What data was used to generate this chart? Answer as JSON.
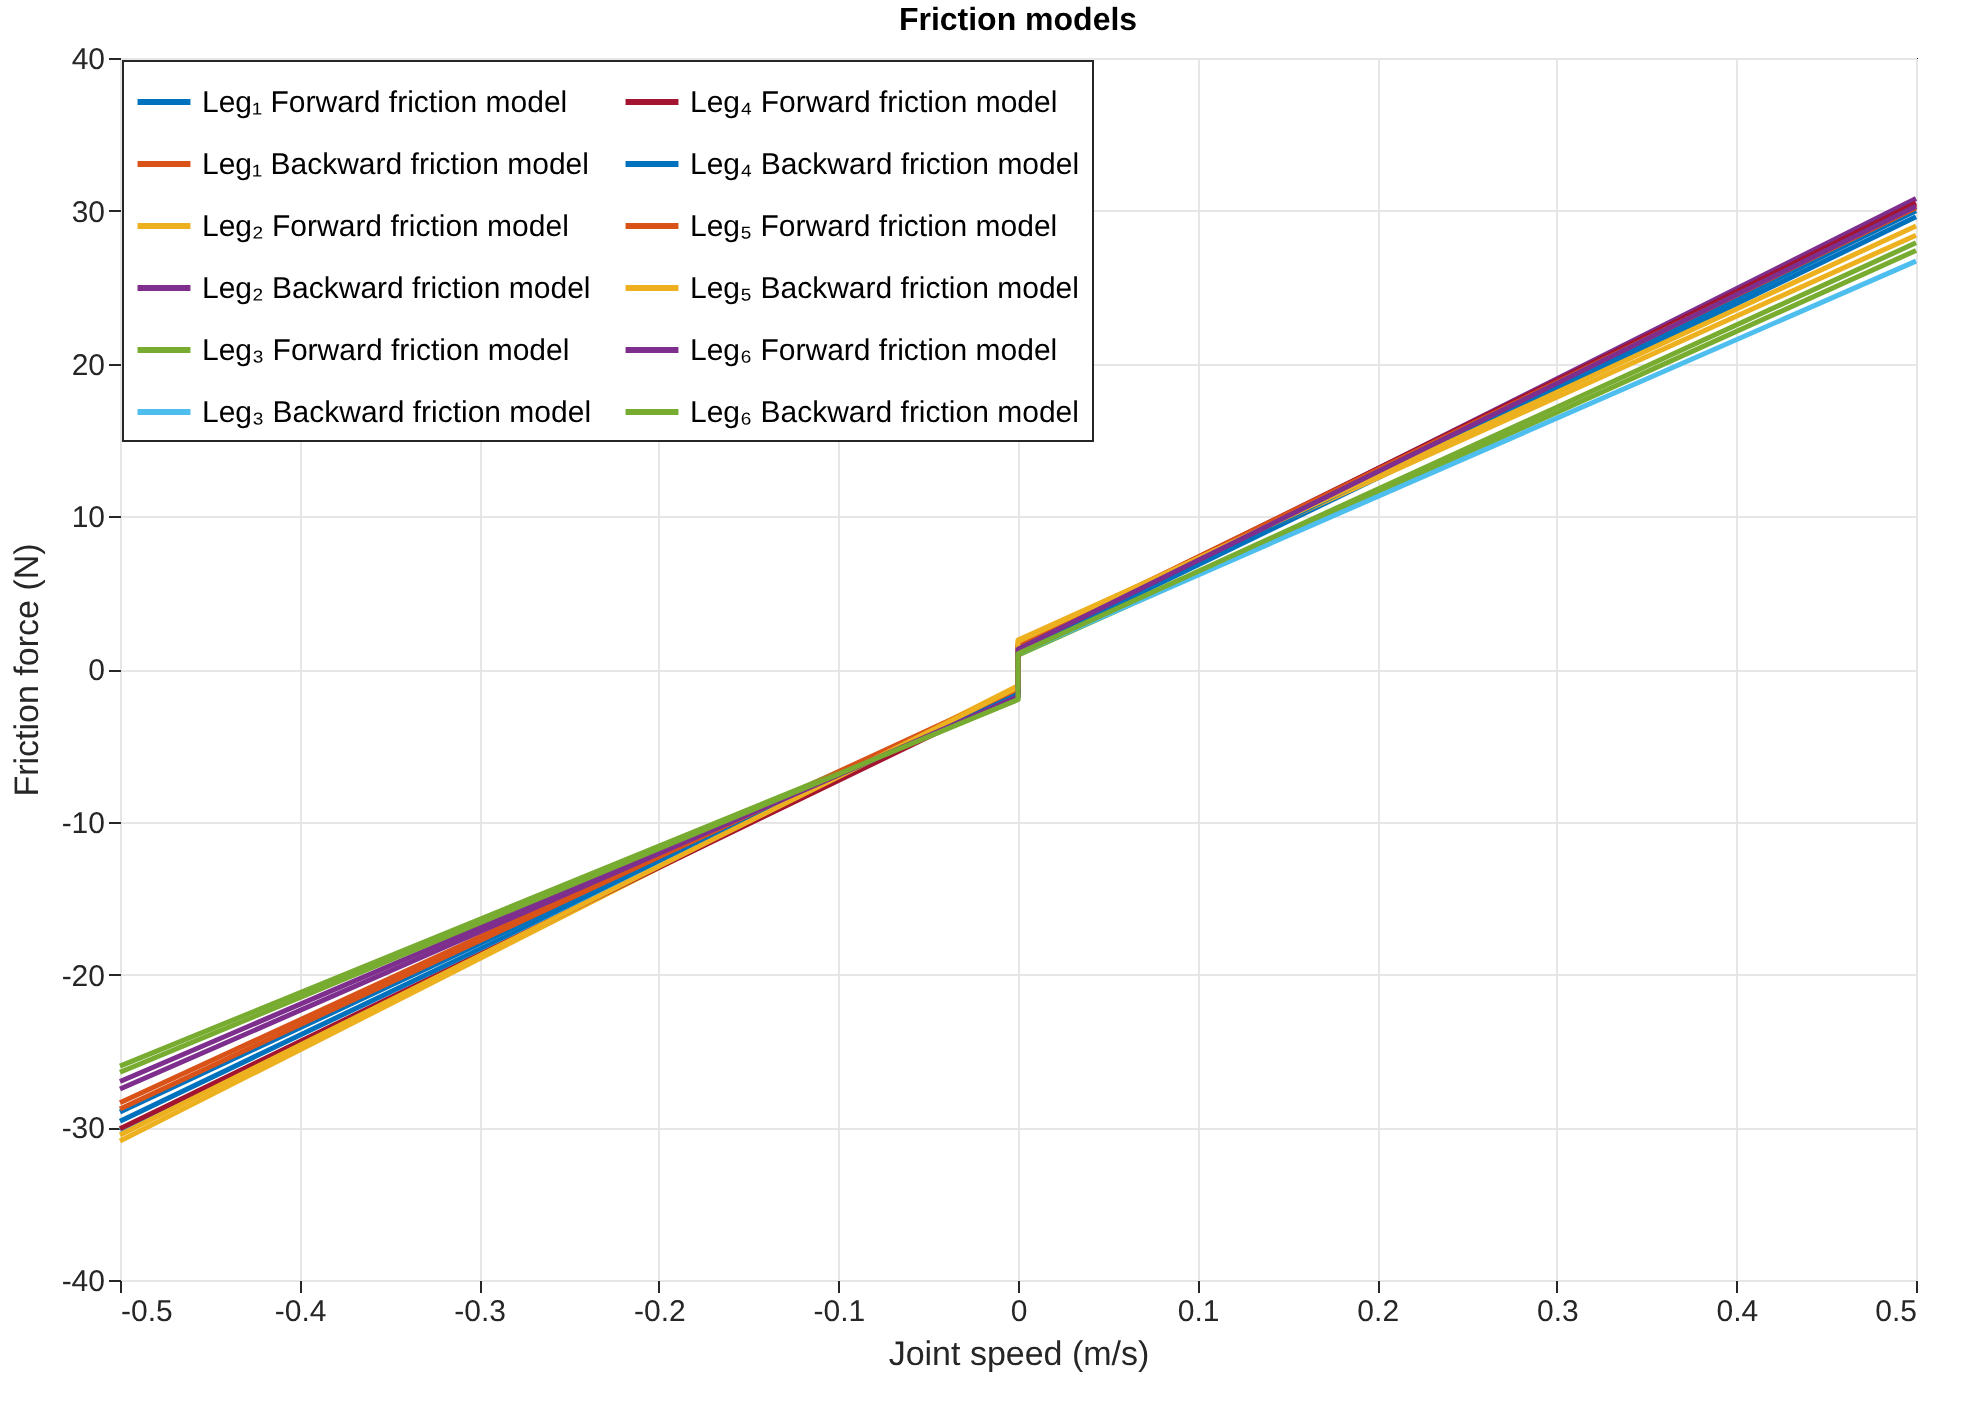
{
  "chart_data": {
    "type": "line",
    "title": "Friction models",
    "xlabel": "Joint speed (m/s)",
    "ylabel": "Friction force (N)",
    "x": [
      -0.5,
      0,
      0,
      0.5
    ],
    "series": [
      {
        "name": "Leg₁ Forward friction model",
        "color": "#0072bd",
        "values": [
          -29.6,
          -1.5,
          1.1,
          29.6
        ]
      },
      {
        "name": "Leg₁ Backward friction model",
        "color": "#d95319",
        "values": [
          -28.4,
          -1.3,
          1.4,
          30.4
        ]
      },
      {
        "name": "Leg₂ Forward friction model",
        "color": "#edb120",
        "values": [
          -30.9,
          -1.1,
          1.9,
          28.4
        ]
      },
      {
        "name": "Leg₂ Backward friction model",
        "color": "#7e2f8e",
        "values": [
          -27.0,
          -1.8,
          1.3,
          30.8
        ]
      },
      {
        "name": "Leg₃ Forward friction model",
        "color": "#77ac30",
        "values": [
          -26.0,
          -2.0,
          0.9,
          27.4
        ]
      },
      {
        "name": "Leg₃ Backward friction model",
        "color": "#4dbeee",
        "values": [
          -30.2,
          -1.4,
          1.0,
          26.7
        ]
      },
      {
        "name": "Leg₄ Forward friction model",
        "color": "#a2142f",
        "values": [
          -30.1,
          -1.6,
          1.5,
          30.5
        ]
      },
      {
        "name": "Leg₄ Backward friction model",
        "color": "#0072bd",
        "values": [
          -29.0,
          -1.5,
          1.2,
          30.0
        ]
      },
      {
        "name": "Leg₅ Forward friction model",
        "color": "#d95319",
        "values": [
          -28.8,
          -1.3,
          1.6,
          30.2
        ]
      },
      {
        "name": "Leg₅ Backward friction model",
        "color": "#edb120",
        "values": [
          -30.5,
          -1.2,
          1.8,
          29.0
        ]
      },
      {
        "name": "Leg₆ Forward friction model",
        "color": "#7e2f8e",
        "values": [
          -27.5,
          -1.8,
          1.3,
          30.3
        ]
      },
      {
        "name": "Leg₆ Backward friction model",
        "color": "#77ac30",
        "values": [
          -26.4,
          -2.0,
          1.0,
          27.9
        ]
      }
    ],
    "xlim": [
      -0.5,
      0.5
    ],
    "xticks": [
      -0.5,
      -0.4,
      -0.3,
      -0.2,
      -0.1,
      0,
      0.1,
      0.2,
      0.3,
      0.4,
      0.5
    ],
    "ylim": [
      -40,
      40
    ],
    "yticks": [
      -40,
      -30,
      -20,
      -10,
      0,
      10,
      20,
      30,
      40
    ],
    "grid": true,
    "legend": "top left"
  }
}
